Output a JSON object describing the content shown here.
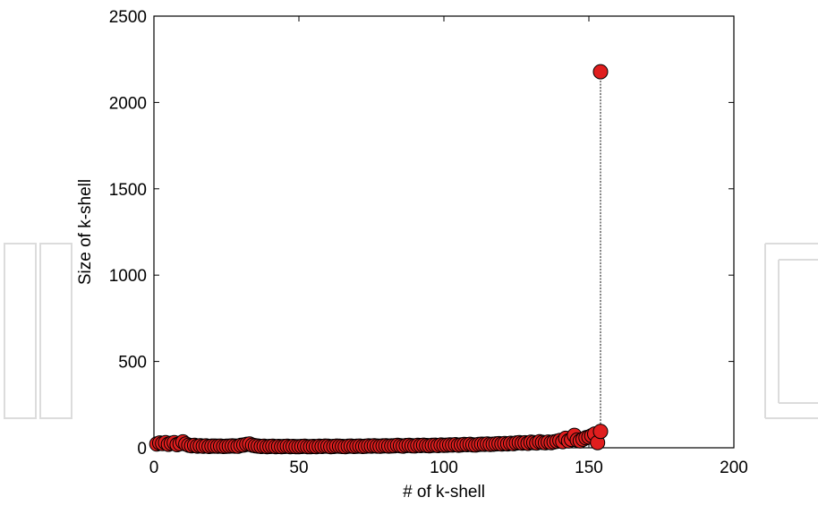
{
  "chart_data": {
    "type": "scatter",
    "title": "",
    "xlabel": "# of k-shell",
    "ylabel": "Size of k-shell",
    "xlim": [
      0,
      200
    ],
    "ylim": [
      0,
      2500
    ],
    "xticks": [
      0,
      50,
      100,
      150,
      200
    ],
    "yticks": [
      0,
      500,
      1000,
      1500,
      2000,
      2500
    ],
    "grid": false,
    "legend": "none",
    "marker_color": "#e01e1e",
    "marker_edge_color": "#000000",
    "line_color": "#333333",
    "series": [
      {
        "x": [
          1,
          2,
          3,
          4,
          5,
          6,
          7,
          8,
          9,
          10,
          11,
          12,
          13,
          14,
          15,
          16,
          17,
          18,
          19,
          20,
          21,
          22,
          23,
          24,
          25,
          26,
          27,
          28,
          29,
          30,
          31,
          32,
          33,
          34,
          35,
          36,
          37,
          38,
          39,
          40,
          41,
          42,
          43,
          44,
          45,
          46,
          47,
          48,
          49,
          50,
          51,
          52,
          53,
          54,
          55,
          56,
          57,
          58,
          59,
          60,
          61,
          62,
          63,
          64,
          65,
          66,
          67,
          68,
          69,
          70,
          71,
          72,
          73,
          74,
          75,
          76,
          77,
          78,
          79,
          80,
          81,
          82,
          83,
          84,
          85,
          86,
          87,
          88,
          89,
          90,
          91,
          92,
          93,
          94,
          95,
          96,
          97,
          98,
          99,
          100,
          101,
          102,
          103,
          104,
          105,
          106,
          107,
          108,
          109,
          110,
          111,
          112,
          113,
          114,
          115,
          116,
          117,
          118,
          119,
          120,
          121,
          122,
          123,
          124,
          125,
          126,
          127,
          128,
          129,
          130,
          131,
          132,
          133,
          134,
          135,
          136,
          137,
          138,
          139,
          140,
          141,
          142,
          143,
          144,
          145,
          146,
          147,
          148,
          149,
          150,
          151,
          152,
          153,
          154
        ],
        "y": [
          22,
          28,
          25,
          30,
          20,
          26,
          30,
          18,
          24,
          34,
          22,
          15,
          12,
          14,
          10,
          12,
          9,
          11,
          8,
          10,
          10,
          9,
          10,
          8,
          9,
          10,
          11,
          10,
          9,
          14,
          16,
          20,
          22,
          15,
          12,
          10,
          8,
          9,
          7,
          8,
          9,
          7,
          8,
          6,
          8,
          9,
          7,
          8,
          6,
          7,
          8,
          9,
          7,
          6,
          8,
          7,
          9,
          8,
          10,
          9,
          7,
          8,
          10,
          9,
          8,
          7,
          9,
          10,
          8,
          9,
          10,
          8,
          9,
          11,
          10,
          12,
          10,
          9,
          11,
          12,
          10,
          11,
          12,
          14,
          12,
          10,
          13,
          14,
          12,
          11,
          14,
          13,
          15,
          13,
          12,
          14,
          15,
          13,
          16,
          14,
          15,
          17,
          16,
          18,
          15,
          17,
          19,
          18,
          20,
          17,
          16,
          19,
          21,
          20,
          22,
          19,
          21,
          23,
          24,
          22,
          25,
          23,
          26,
          24,
          28,
          30,
          27,
          29,
          26,
          32,
          30,
          28,
          35,
          31,
          29,
          33,
          30,
          34,
          38,
          42,
          36,
          55,
          40,
          48,
          72,
          45,
          40,
          50,
          58,
          62,
          70,
          80,
          30,
          95
        ]
      },
      {
        "x": [
          154
        ],
        "y": [
          2178
        ]
      }
    ]
  }
}
